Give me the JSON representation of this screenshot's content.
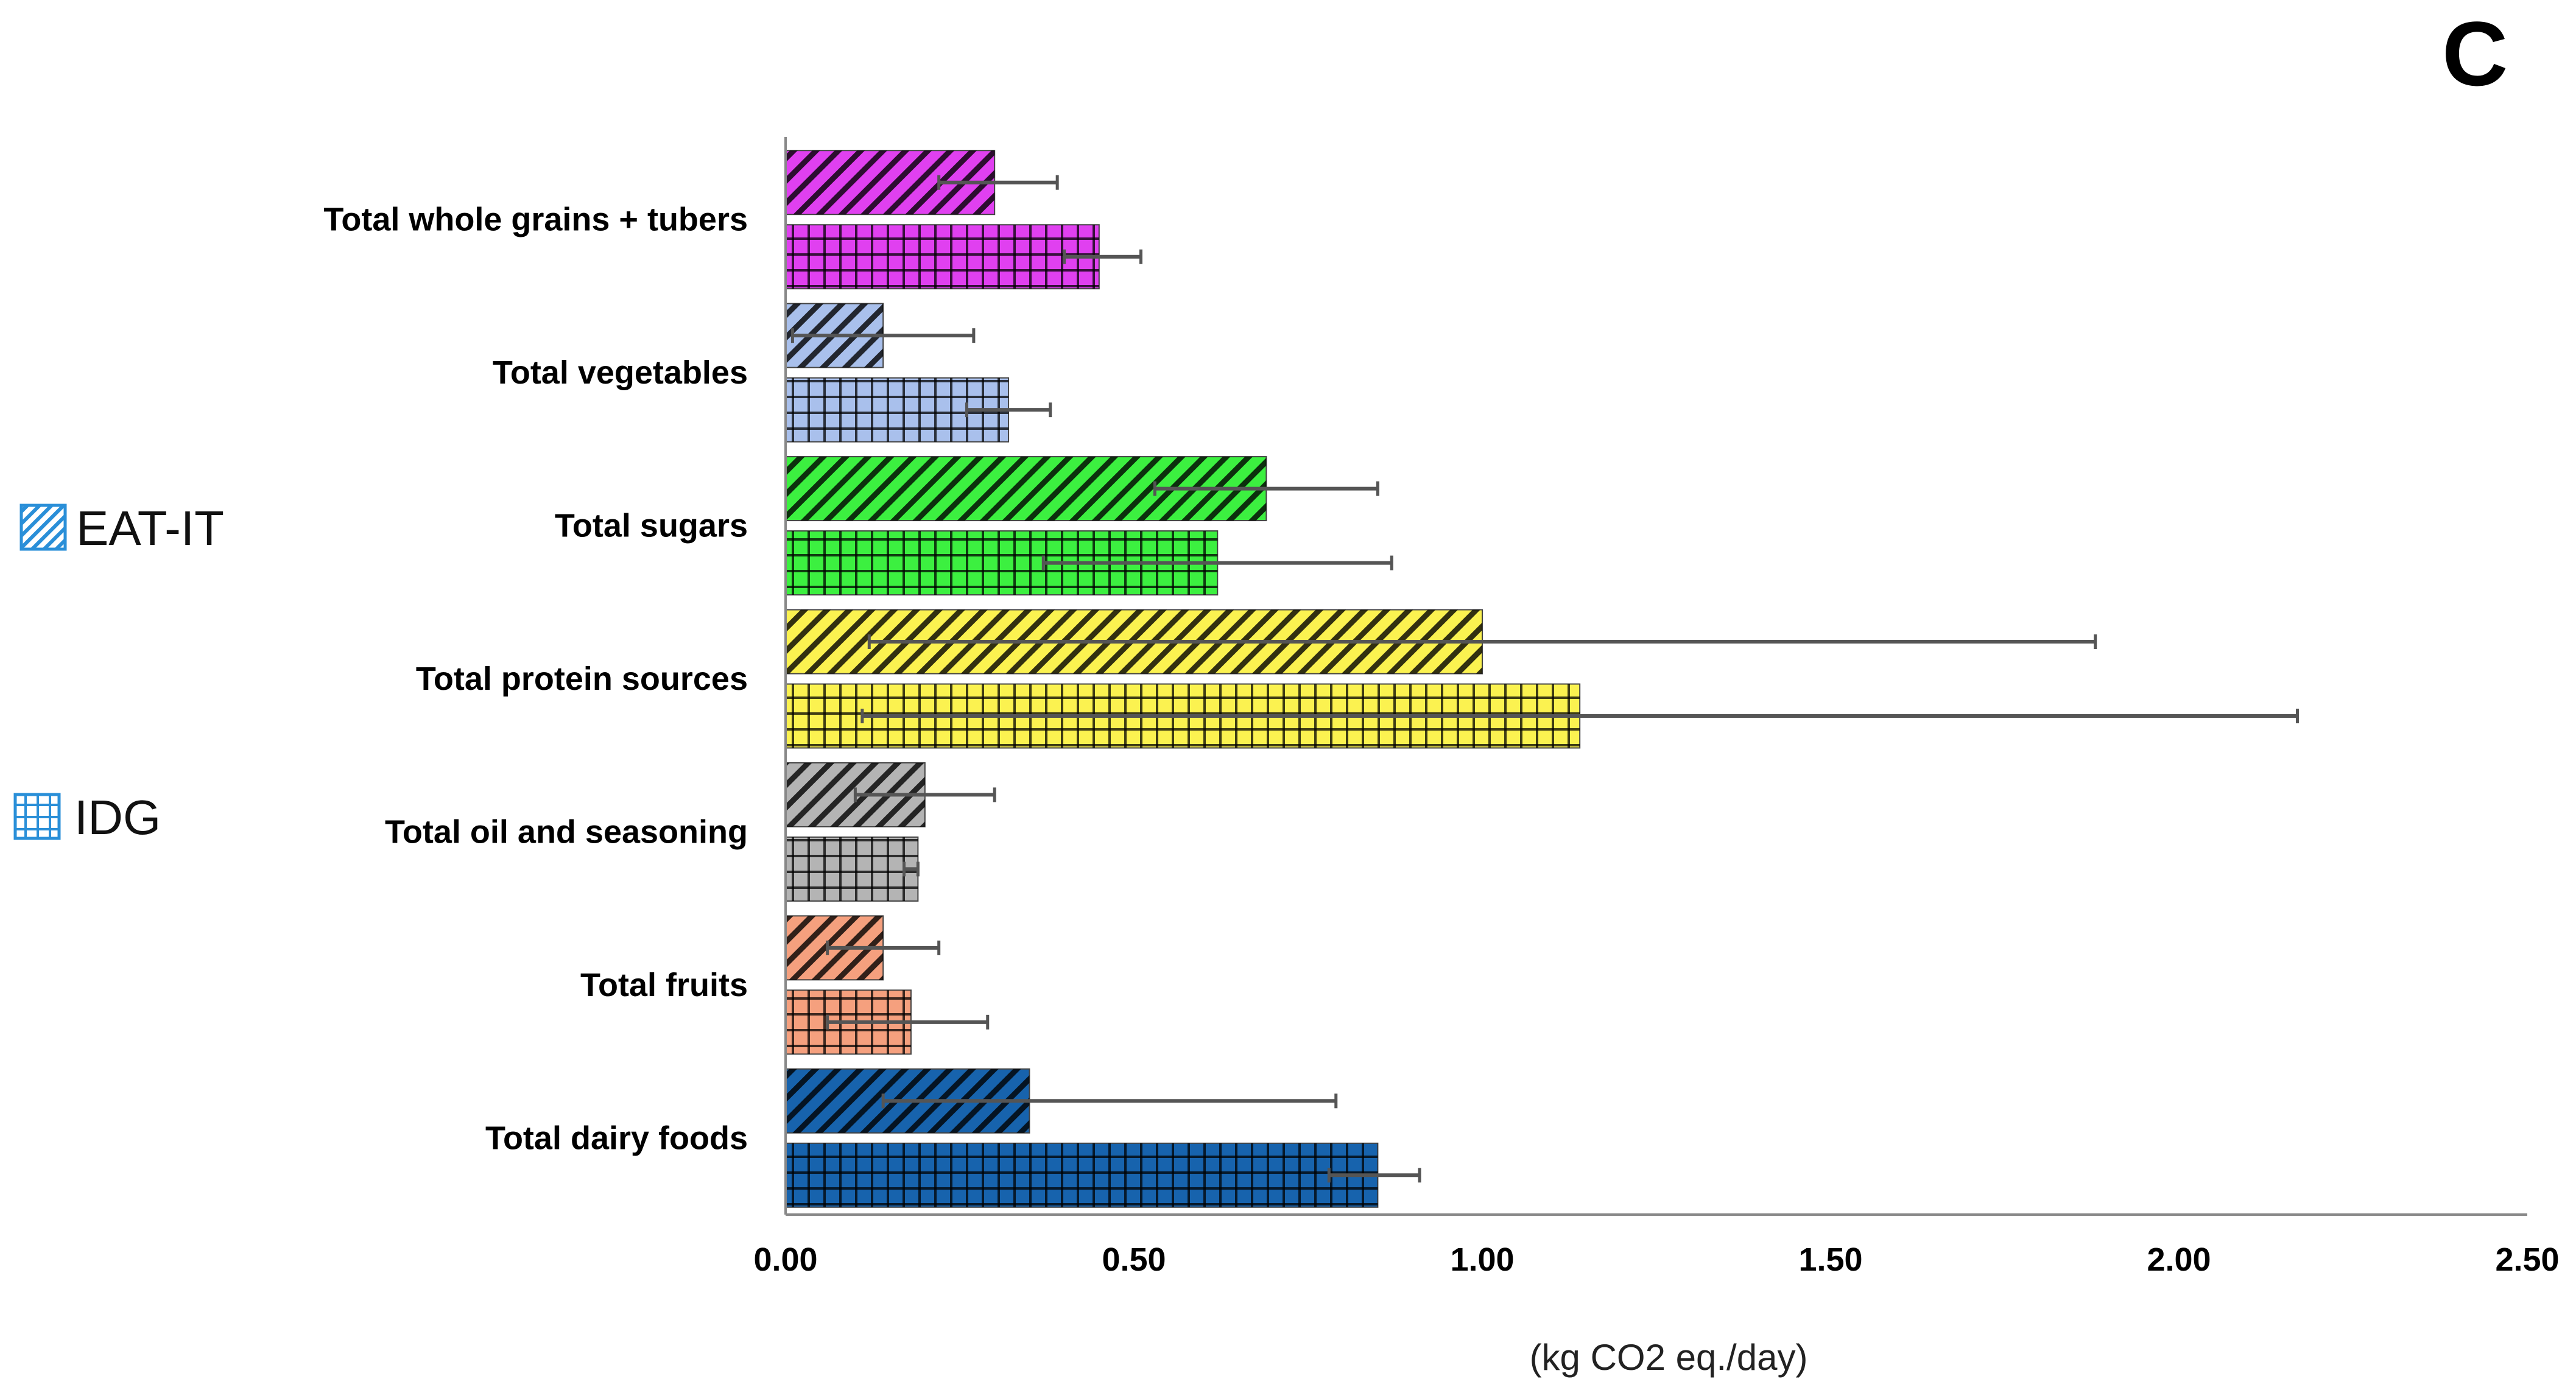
{
  "panel_label": "C",
  "chart_data": {
    "type": "bar",
    "orientation": "horizontal",
    "title": "",
    "xlabel": "(kg CO2 eq./day)",
    "ylabel": "",
    "xlim": [
      0,
      2.5
    ],
    "xticks": [
      "0.00",
      "0.50",
      "1.00",
      "1.50",
      "2.00",
      "2.50"
    ],
    "grid": false,
    "legend_position": "left",
    "legend": [
      {
        "name": "EAT-IT",
        "pattern": "diagonal-hatch"
      },
      {
        "name": "IDG",
        "pattern": "grid-hatch"
      }
    ],
    "categories": [
      "Total whole grains + tubers",
      "Total vegetables",
      "Total sugars",
      "Total protein sources",
      "Total oil and seasoning",
      "Total fruits",
      "Total dairy foods"
    ],
    "colors": [
      "#e040f0",
      "#a9c0ec",
      "#3cf040",
      "#fbf250",
      "#b4b4b4",
      "#f5a07e",
      "#1763ad"
    ],
    "series": [
      {
        "name": "EAT-IT",
        "values": [
          0.3,
          0.14,
          0.69,
          1.0,
          0.2,
          0.14,
          0.35
        ],
        "error_low": [
          0.22,
          0.01,
          0.53,
          0.12,
          0.1,
          0.06,
          0.14
        ],
        "error_high": [
          0.39,
          0.27,
          0.85,
          1.88,
          0.3,
          0.22,
          0.79
        ]
      },
      {
        "name": "IDG",
        "values": [
          0.45,
          0.32,
          0.62,
          1.14,
          0.19,
          0.18,
          0.85
        ],
        "error_low": [
          0.4,
          0.26,
          0.37,
          0.11,
          0.17,
          0.06,
          0.78
        ],
        "error_high": [
          0.51,
          0.38,
          0.87,
          2.17,
          0.19,
          0.29,
          0.91
        ]
      }
    ]
  }
}
